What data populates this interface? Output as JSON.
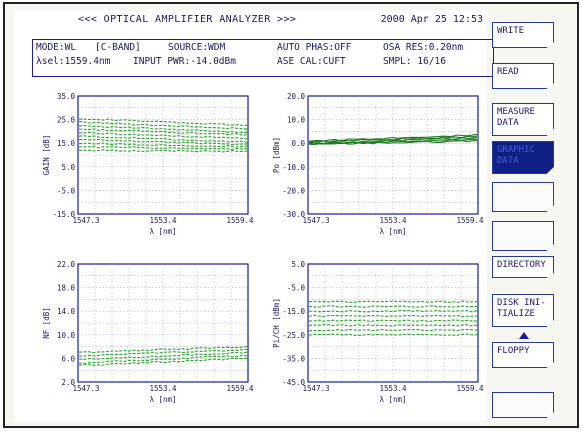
{
  "header": {
    "title": "<<< OPTICAL AMPLIFIER ANALYZER >>>",
    "datetime": "2000 Apr 25 12:53"
  },
  "info": {
    "mode": "MODE:WL",
    "band": "[C-BAND]",
    "source": "SOURCE:WDM",
    "auto_phas": "AUTO PHAS:OFF",
    "osa_res": "OSA RES:0.20nm",
    "asel": "λsel:1559.4nm",
    "input_pwr": "INPUT PWR:-14.0dBm",
    "ase_cal": "ASE CAL:CUFT",
    "smpl": "SMPL:  16/16"
  },
  "graphs": [
    {
      "id": "gain",
      "ylabel": "GAIN [dB]",
      "xlabel": "λ [nm]",
      "yticks": [
        "35.0",
        "25.0",
        "15.0",
        "5.0",
        "-5.0",
        "-15.0"
      ],
      "xticks": [
        "1547.3",
        "1553.4",
        "1559.4"
      ],
      "ymin": -15,
      "ymax": 35,
      "color": "#2aa02a",
      "curves": [
        {
          "start": 25.5,
          "end": 22.5
        },
        {
          "start": 24,
          "end": 21
        },
        {
          "start": 22.5,
          "end": 19.5
        },
        {
          "start": 21,
          "end": 18.5
        },
        {
          "start": 19.5,
          "end": 17
        },
        {
          "start": 18,
          "end": 15.5
        },
        {
          "start": 16.5,
          "end": 14.5
        },
        {
          "start": 15,
          "end": 13.5
        },
        {
          "start": 13.5,
          "end": 12.5
        },
        {
          "start": 12,
          "end": 11.5
        }
      ]
    },
    {
      "id": "po",
      "ylabel": "Po [dBm]",
      "xlabel": "λ [nm]",
      "yticks": [
        "20.0",
        "10.0",
        "0.0",
        "-10.0",
        "-20.0",
        "-30.0"
      ],
      "xticks": [
        "1547.3",
        "1553.4",
        "1559.4"
      ],
      "ymin": -30,
      "ymax": 20,
      "color": "#1f7a1f",
      "curves": [
        {
          "start": 1.0,
          "end": 3.5
        },
        {
          "start": 0.5,
          "end": 2.8
        },
        {
          "start": 0.0,
          "end": 2.2
        },
        {
          "start": -0.3,
          "end": 1.6
        },
        {
          "start": -0.6,
          "end": 1.0
        }
      ]
    },
    {
      "id": "nf",
      "ylabel": "NF [dB]",
      "xlabel": "λ [nm]",
      "yticks": [
        "22.0",
        "18.0",
        "14.0",
        "10.0",
        "6.0",
        "2.0"
      ],
      "xticks": [
        "1547.3",
        "1553.4",
        "1559.4"
      ],
      "ymin": 2,
      "ymax": 22,
      "color": "#2aa02a",
      "curves": [
        {
          "start": 7.0,
          "end": 8.0
        },
        {
          "start": 6.4,
          "end": 7.5
        },
        {
          "start": 5.8,
          "end": 7.0
        },
        {
          "start": 5.2,
          "end": 6.5
        },
        {
          "start": 4.8,
          "end": 6.0
        }
      ]
    },
    {
      "id": "pich",
      "ylabel": "Pi/CH [dBm]",
      "xlabel": "λ [nm]",
      "yticks": [
        "5.0",
        "-5.0",
        "-15.0",
        "-25.0",
        "-35.0",
        "-45.0"
      ],
      "xticks": [
        "1547.3",
        "1553.4",
        "1559.4"
      ],
      "ymin": -45,
      "ymax": 5,
      "color": "#2aa02a",
      "curves": [
        {
          "start": -11,
          "end": -11
        },
        {
          "start": -13,
          "end": -13
        },
        {
          "start": -15,
          "end": -15
        },
        {
          "start": -17,
          "end": -17
        },
        {
          "start": -19,
          "end": -19
        },
        {
          "start": -21,
          "end": -21
        },
        {
          "start": -23,
          "end": -23
        },
        {
          "start": -25,
          "end": -25
        }
      ]
    }
  ],
  "sidebar": {
    "write": "WRITE",
    "read": "READ",
    "measure_data": "MEASURE DATA",
    "graphic_data": "GRAPHIC DATA",
    "directory": "DIRECTORY",
    "disk_init": "DISK INI- TIALIZE",
    "floppy": "FLOPPY"
  },
  "colors": {
    "frame": "#222222",
    "accent": "#1a1a9a",
    "selected": "#0f1f86",
    "trace": "#2aa02a"
  }
}
